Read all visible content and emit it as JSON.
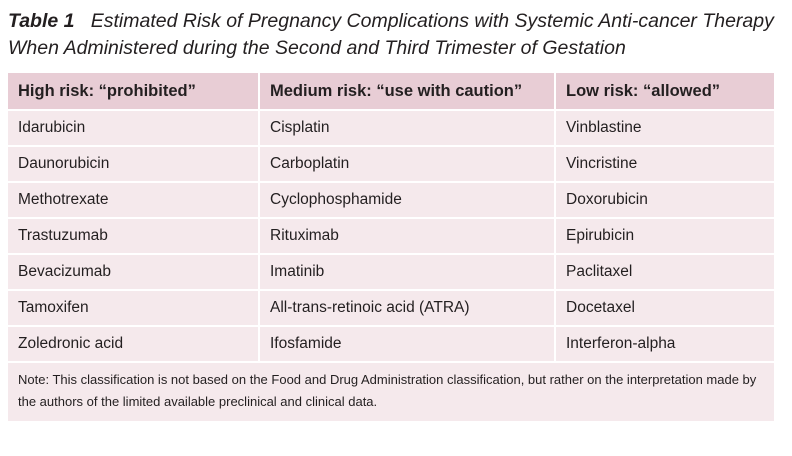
{
  "caption": {
    "label": "Table 1",
    "title": "Estimated Risk of Pregnancy Complications with Systemic Anti-cancer Therapy When Administered during the Second and Third Trimester of Gestation"
  },
  "table": {
    "headers": [
      "High risk: “prohibited”",
      "Medium risk: “use with caution”",
      "Low risk: “allowed”"
    ],
    "rows": [
      [
        "Idarubicin",
        "Cisplatin",
        "Vinblastine"
      ],
      [
        "Daunorubicin",
        "Carboplatin",
        "Vincristine"
      ],
      [
        "Methotrexate",
        "Cyclophosphamide",
        "Doxorubicin"
      ],
      [
        "Trastuzumab",
        "Rituximab",
        "Epirubicin"
      ],
      [
        "Bevacizumab",
        "Imatinib",
        "Paclitaxel"
      ],
      [
        "Tamoxifen",
        "All-trans-retinoic acid (ATRA)",
        "Docetaxel"
      ],
      [
        "Zoledronic acid",
        "Ifosfamide",
        "Interferon-alpha"
      ]
    ],
    "note": "Note: This classification is not based on the Food and Drug Administration classification, but rather on the interpretation made by the authors of the limited available preclinical and clinical data."
  },
  "colors": {
    "header_bg": "#e8cdd5",
    "body_bg": "#f5e9ec",
    "text": "#231f20"
  }
}
